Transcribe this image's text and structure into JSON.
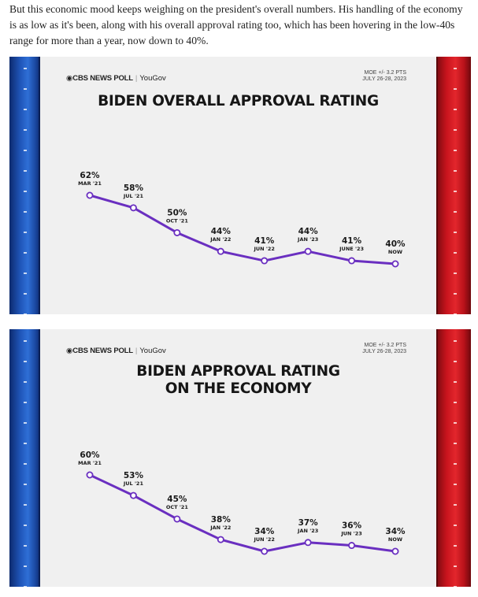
{
  "article": {
    "paragraph": "But this economic mood keeps weighing on the president's overall numbers. His handling of the economy is as low as it's been, along with his overall approval rating too, which has been hovering in the low-40s range for more than a year, now down to 40%."
  },
  "branding": {
    "cbs": "CBS NEWS POLL",
    "separator": "|",
    "yougov": "YouGov"
  },
  "moe": {
    "line1": "MOE +/- 3.2 PTS",
    "line2": "JULY 26-28, 2023"
  },
  "colors": {
    "line": "#6a2fc0",
    "marker_fill": "#ffffff",
    "background": "#f0f0f0",
    "left_bar": "#1f55b8",
    "right_bar": "#d01c24"
  },
  "chart_data": [
    {
      "type": "line",
      "title_lines": [
        "BIDEN OVERALL APPROVAL RATING"
      ],
      "categories": [
        "MAR '21",
        "JUL '21",
        "OCT '21",
        "JAN '22",
        "JUN '22",
        "JAN '23",
        "JUNE '23",
        "NOW"
      ],
      "values": [
        62,
        58,
        50,
        44,
        41,
        44,
        41,
        40
      ],
      "value_labels": [
        "62%",
        "58%",
        "50%",
        "44%",
        "41%",
        "44%",
        "41%",
        "40%"
      ],
      "unit": "%"
    },
    {
      "type": "line",
      "title_lines": [
        "BIDEN APPROVAL RATING",
        "ON THE ECONOMY"
      ],
      "categories": [
        "MAR '21",
        "JUL '21",
        "OCT '21",
        "JAN '22",
        "JUN '22",
        "JAN '23",
        "JUN '23",
        "NOW"
      ],
      "values": [
        60,
        53,
        45,
        38,
        34,
        37,
        36,
        34
      ],
      "value_labels": [
        "60%",
        "53%",
        "45%",
        "38%",
        "34%",
        "37%",
        "36%",
        "34%"
      ],
      "unit": "%"
    }
  ]
}
